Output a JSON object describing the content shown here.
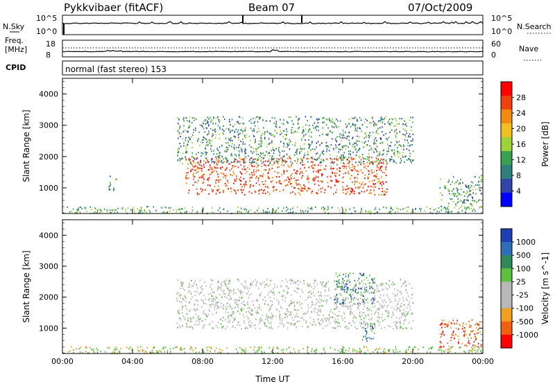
{
  "header": {
    "title": "Pykkvibaer (fitACF)",
    "beam": "Beam 07",
    "date": "07/Oct/2009"
  },
  "strip_noise": {
    "left_label": "N.Sky",
    "left_ticks": [
      "10^5",
      "10^0"
    ],
    "right_label": "N.Search",
    "right_ticks": [
      "10^5",
      "10^0"
    ]
  },
  "strip_freq": {
    "left_label_1": "Freq.",
    "left_label_2": "[MHz]",
    "left_ticks": [
      "18",
      "8"
    ],
    "right_label": "Nave",
    "right_ticks": [
      "60",
      "0"
    ]
  },
  "cpid": {
    "label": "CPID",
    "text": "normal (fast stereo) 153"
  },
  "colors": {
    "power_scale": [
      "#0000ff",
      "#3344a8",
      "#2f7f7a",
      "#3aa050",
      "#9bd33a",
      "#f0c020",
      "#f08a10",
      "#f04010",
      "#ff0000"
    ],
    "velocity_scale": [
      "#1f3fb0",
      "#2f6fb8",
      "#2e8a5a",
      "#5cc040",
      "#b8b8b8",
      "#b8b8b8",
      "#f0a020",
      "#f06010",
      "#ff0000"
    ]
  },
  "chart_data": [
    {
      "type": "heatmap",
      "panel": "power",
      "ylabel": "Slant Range [km]",
      "xlabel": "Time UT",
      "x_ticks": [
        "00:00",
        "04:00",
        "08:00",
        "12:00",
        "16:00",
        "20:00",
        "00:00"
      ],
      "y_ticks": [
        "1000",
        "2000",
        "3000",
        "4000"
      ],
      "xlim": [
        0,
        24
      ],
      "ylim": [
        180,
        4500
      ],
      "colorbar_label": "Power [dB]",
      "colorbar_ticks": [
        "28",
        "24",
        "20",
        "16",
        "12",
        "8",
        "4"
      ],
      "echo_regions": [
        {
          "t0": 0.2,
          "t1": 23.9,
          "r0": 200,
          "r1": 420,
          "level": "low"
        },
        {
          "t0": 7.0,
          "t1": 18.5,
          "r0": 800,
          "r1": 2000,
          "level": "high"
        },
        {
          "t0": 6.5,
          "t1": 20.0,
          "r0": 1800,
          "r1": 3300,
          "level": "mid"
        },
        {
          "t0": 2.6,
          "t1": 3.1,
          "r0": 900,
          "r1": 1400,
          "level": "mid"
        },
        {
          "t0": 21.5,
          "t1": 23.9,
          "r0": 400,
          "r1": 1400,
          "level": "mid"
        }
      ]
    },
    {
      "type": "heatmap",
      "panel": "velocity",
      "ylabel": "Slant Range [km]",
      "xlabel": "Time UT",
      "x_ticks": [
        "00:00",
        "04:00",
        "08:00",
        "12:00",
        "16:00",
        "20:00",
        "00:00"
      ],
      "y_ticks": [
        "1000",
        "2000",
        "3000",
        "4000"
      ],
      "xlim": [
        0,
        24
      ],
      "ylim": [
        180,
        4500
      ],
      "colorbar_label": "Velocity [m s^-1]",
      "colorbar_ticks": [
        "1000",
        "500",
        "100",
        "25",
        "-25",
        "-100",
        "-500",
        "-1000"
      ],
      "echo_regions": [
        {
          "t0": 0.2,
          "t1": 23.9,
          "r0": 200,
          "r1": 420,
          "level": "low"
        },
        {
          "t0": 6.5,
          "t1": 20.0,
          "r0": 1000,
          "r1": 2600,
          "level": "zero"
        },
        {
          "t0": 15.5,
          "t1": 17.8,
          "r0": 1800,
          "r1": 2800,
          "level": "pos"
        },
        {
          "t0": 17.0,
          "t1": 17.8,
          "r0": 600,
          "r1": 1200,
          "level": "pos"
        },
        {
          "t0": 21.5,
          "t1": 23.9,
          "r0": 400,
          "r1": 1300,
          "level": "neg"
        }
      ]
    }
  ]
}
